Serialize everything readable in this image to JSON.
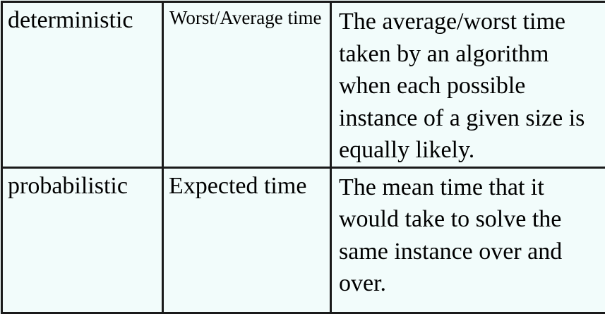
{
  "table": {
    "rows": [
      {
        "category": "deterministic",
        "measure": "Worst/Average time",
        "description": "The average/worst time taken by an algorithm when each possible instance of a given size is equally likely."
      },
      {
        "category": "probabilistic",
        "measure": "Expected time",
        "description": "The mean time that it would take to solve the same instance over and over."
      }
    ]
  },
  "colors": {
    "background": "#f2fcfb",
    "border": "#1a1a1a",
    "text": "#000000"
  }
}
